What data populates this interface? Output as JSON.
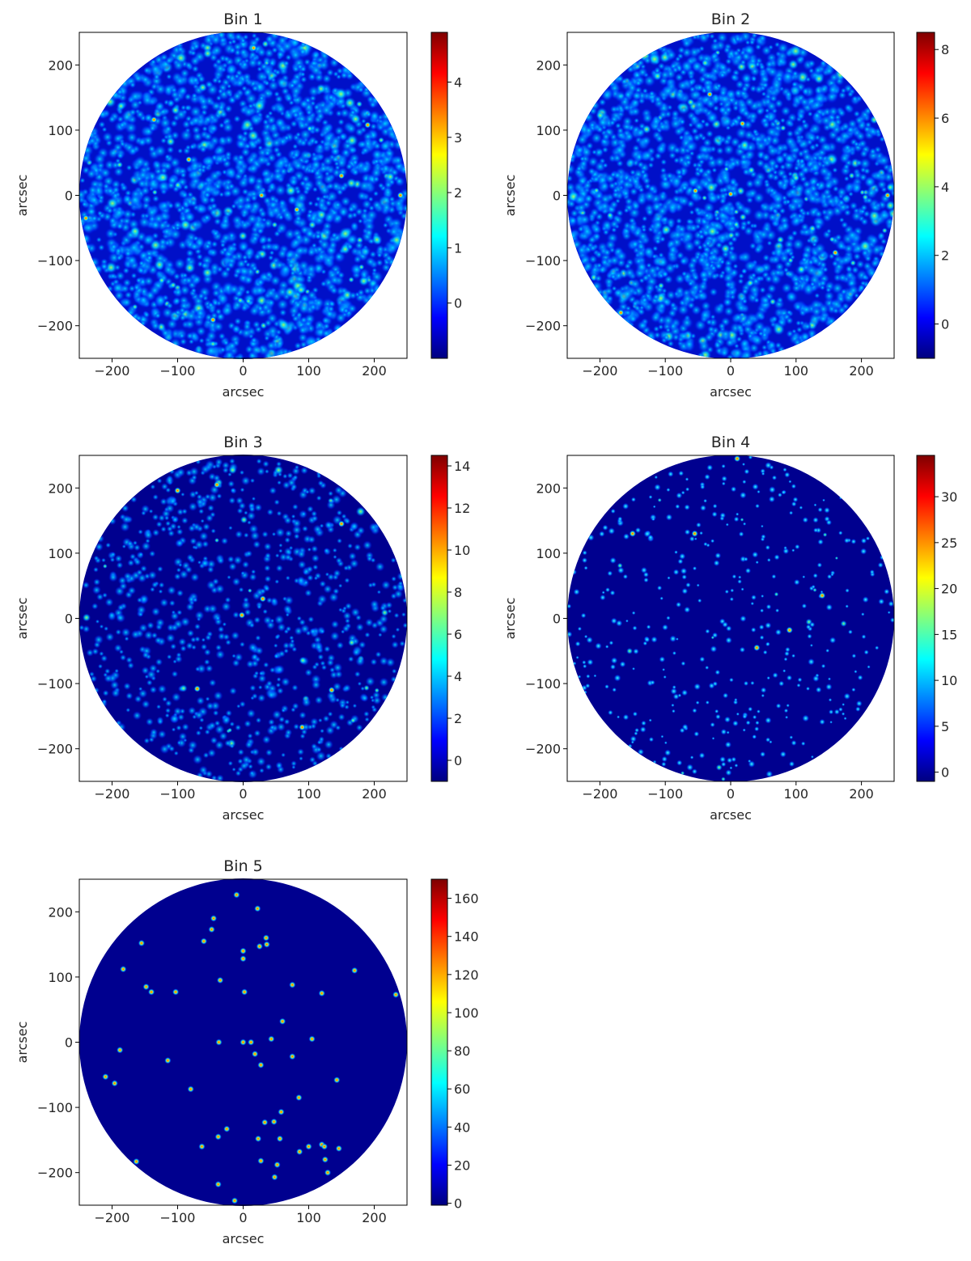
{
  "chart_data": [
    {
      "type": "heatmap",
      "title": "Bin 1",
      "xlabel": "arcsec",
      "ylabel": "arcsec",
      "xlim": [
        -250,
        250
      ],
      "ylim": [
        -250,
        250
      ],
      "xticks": [
        -200,
        -100,
        0,
        100,
        200
      ],
      "yticks": [
        -200,
        -100,
        0,
        100,
        200
      ],
      "colormap": "jet",
      "colorbar": {
        "min": -1,
        "max": 4.9,
        "ticks": [
          0,
          1,
          2,
          3,
          4
        ]
      },
      "field_radius": 250,
      "texture": "dense_noise",
      "bright_sources": [
        [
          16,
          226
        ],
        [
          -136,
          116
        ],
        [
          -83,
          55
        ],
        [
          28,
          0
        ],
        [
          82,
          -22
        ],
        [
          150,
          30
        ],
        [
          -240,
          -35
        ],
        [
          240,
          0
        ],
        [
          -46,
          -191
        ],
        [
          190,
          108
        ]
      ]
    },
    {
      "type": "heatmap",
      "title": "Bin 2",
      "xlabel": "arcsec",
      "ylabel": "arcsec",
      "xlim": [
        -250,
        250
      ],
      "ylim": [
        -250,
        250
      ],
      "xticks": [
        -200,
        -100,
        0,
        100,
        200
      ],
      "yticks": [
        -200,
        -100,
        0,
        100,
        200
      ],
      "colormap": "jet",
      "colorbar": {
        "min": -1,
        "max": 8.5,
        "ticks": [
          0,
          2,
          4,
          6,
          8
        ]
      },
      "field_radius": 250,
      "texture": "dense_noise",
      "bright_sources": [
        [
          0,
          2
        ],
        [
          -54,
          7
        ],
        [
          -32,
          155
        ],
        [
          18,
          110
        ],
        [
          -168,
          -180
        ],
        [
          240,
          0
        ],
        [
          160,
          -88
        ]
      ]
    },
    {
      "type": "heatmap",
      "title": "Bin 3",
      "xlabel": "arcsec",
      "ylabel": "arcsec",
      "xlim": [
        -250,
        250
      ],
      "ylim": [
        -250,
        250
      ],
      "xticks": [
        -200,
        -100,
        0,
        100,
        200
      ],
      "yticks": [
        -200,
        -100,
        0,
        100,
        200
      ],
      "colormap": "jet",
      "colorbar": {
        "min": -1,
        "max": 14.5,
        "ticks": [
          0,
          2,
          4,
          6,
          8,
          10,
          12,
          14
        ]
      },
      "field_radius": 250,
      "texture": "sparse_noise",
      "bright_sources": [
        [
          -100,
          196
        ],
        [
          90,
          -167
        ],
        [
          30,
          30
        ],
        [
          -2,
          5
        ],
        [
          135,
          -110
        ],
        [
          -70,
          -108
        ],
        [
          -40,
          205
        ],
        [
          150,
          145
        ]
      ]
    },
    {
      "type": "heatmap",
      "title": "Bin 4",
      "xlabel": "arcsec",
      "ylabel": "arcsec",
      "xlim": [
        -250,
        250
      ],
      "ylim": [
        -250,
        250
      ],
      "xticks": [
        -200,
        -100,
        0,
        100,
        200
      ],
      "yticks": [
        -200,
        -100,
        0,
        100,
        200
      ],
      "colormap": "jet",
      "colorbar": {
        "min": -1,
        "max": 34.5,
        "ticks": [
          0,
          5,
          10,
          15,
          20,
          25,
          30
        ]
      },
      "field_radius": 250,
      "texture": "point_sources",
      "bright_sources": [
        [
          90,
          -18
        ],
        [
          40,
          -45
        ],
        [
          -55,
          130
        ],
        [
          140,
          35
        ],
        [
          -150,
          130
        ],
        [
          10,
          245
        ]
      ]
    },
    {
      "type": "heatmap",
      "title": "Bin 5",
      "xlabel": "arcsec",
      "ylabel": "arcsec",
      "xlim": [
        -250,
        250
      ],
      "ylim": [
        -250,
        250
      ],
      "xticks": [
        -200,
        -100,
        0,
        100,
        200
      ],
      "yticks": [
        -200,
        -100,
        0,
        100,
        200
      ],
      "colormap": "jet",
      "colorbar": {
        "min": -1,
        "max": 170,
        "ticks": [
          0,
          20,
          40,
          60,
          80,
          100,
          120,
          140,
          160
        ]
      },
      "field_radius": 250,
      "texture": "point_sources",
      "bright_sources": [
        [
          -10,
          226
        ],
        [
          22,
          205
        ],
        [
          -45,
          190
        ],
        [
          -48,
          173
        ],
        [
          -60,
          155
        ],
        [
          -155,
          152
        ],
        [
          35,
          160
        ],
        [
          36,
          150
        ],
        [
          25,
          147
        ],
        [
          0,
          140
        ],
        [
          0,
          128
        ],
        [
          -183,
          112
        ],
        [
          170,
          110
        ],
        [
          -148,
          85
        ],
        [
          -140,
          77
        ],
        [
          -103,
          77
        ],
        [
          -35,
          95
        ],
        [
          2,
          77
        ],
        [
          75,
          88
        ],
        [
          120,
          75
        ],
        [
          233,
          73
        ],
        [
          60,
          32
        ],
        [
          -37,
          0
        ],
        [
          0,
          0
        ],
        [
          12,
          0
        ],
        [
          43,
          5
        ],
        [
          105,
          5
        ],
        [
          -188,
          -12
        ],
        [
          18,
          -18
        ],
        [
          75,
          -22
        ],
        [
          -115,
          -28
        ],
        [
          27,
          -35
        ],
        [
          -210,
          -53
        ],
        [
          -196,
          -63
        ],
        [
          143,
          -58
        ],
        [
          -80,
          -72
        ],
        [
          85,
          -85
        ],
        [
          58,
          -107
        ],
        [
          47,
          -122
        ],
        [
          33,
          -123
        ],
        [
          -25,
          -133
        ],
        [
          23,
          -148
        ],
        [
          56,
          -148
        ],
        [
          -38,
          -145
        ],
        [
          -63,
          -160
        ],
        [
          -163,
          -183
        ],
        [
          100,
          -160
        ],
        [
          120,
          -157
        ],
        [
          124,
          -160
        ],
        [
          86,
          -168
        ],
        [
          125,
          -180
        ],
        [
          146,
          -163
        ],
        [
          27,
          -182
        ],
        [
          52,
          -188
        ],
        [
          129,
          -200
        ],
        [
          48,
          -207
        ],
        [
          -38,
          -218
        ],
        [
          -13,
          -243
        ]
      ]
    }
  ]
}
